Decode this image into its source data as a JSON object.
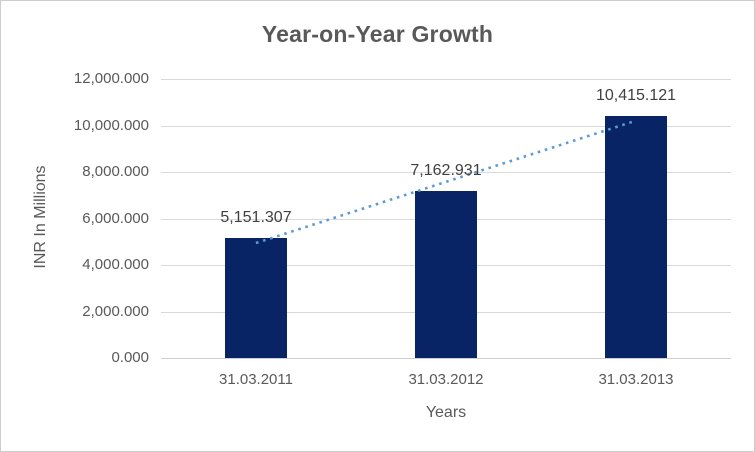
{
  "chart_data": {
    "type": "bar",
    "title": "Year-on-Year Growth",
    "categories": [
      "31.03.2011",
      "31.03.2012",
      "31.03.2013"
    ],
    "values": [
      5151.307,
      7162.931,
      10415.121
    ],
    "data_labels": [
      "5,151.307",
      "7,162.931",
      "10,415.121"
    ],
    "xlabel": "Years",
    "ylabel": "INR In Millions",
    "ylim": [
      0,
      12000
    ],
    "ytick_interval": 2000,
    "ytick_labels": [
      "0.000",
      "2,000.000",
      "4,000.000",
      "6,000.000",
      "8,000.000",
      "10,000.000",
      "12,000.000"
    ],
    "grid": true,
    "legend": "none",
    "trendline": {
      "type": "linear",
      "style": "dotted"
    }
  },
  "colors": {
    "bar": "#082464",
    "trendline": "#5b9bd5",
    "gridline": "#d9d9d9",
    "axis_line": "#cfcfcf",
    "title_text": "#595959",
    "axis_text": "#595959",
    "data_label_text": "#404040",
    "border": "#cdcdcd",
    "background": "#ffffff"
  }
}
